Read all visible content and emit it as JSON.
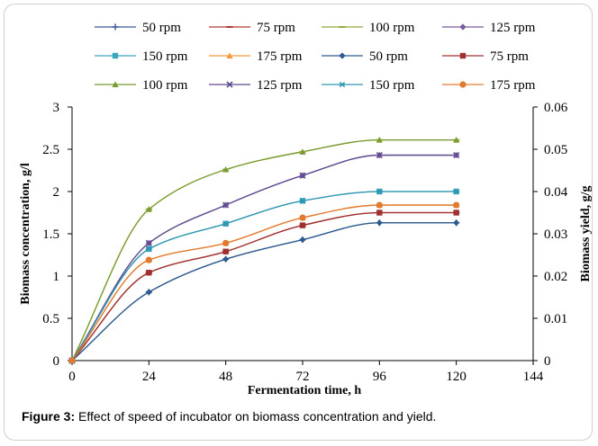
{
  "figure": {
    "caption_label": "Figure 3:",
    "caption_text": "Effect of speed of incubator on biomass concentration and yield."
  },
  "chart_data": {
    "type": "line",
    "xlabel": "Fermentation time, h",
    "ylabel_left": "Biomass concentration, g/l",
    "ylabel_right": "Biomass yield, g/g",
    "xlim": [
      0,
      144
    ],
    "ylim_left": [
      0,
      3
    ],
    "ylim_right": [
      0,
      0.06
    ],
    "x_ticks": [
      0,
      24,
      48,
      72,
      96,
      120,
      144
    ],
    "y_ticks_left": [
      "0",
      "0.5",
      "1",
      "1.5",
      "2",
      "2.5",
      "3"
    ],
    "y_ticks_right": [
      "0",
      "0.01",
      "0.02",
      "0.03",
      "0.04",
      "0.05",
      "0.06"
    ],
    "grid": false,
    "legend_position": "top",
    "x": [
      0,
      24,
      48,
      72,
      96,
      120
    ],
    "series": [
      {
        "name": "50 rpm",
        "axis": "left",
        "marker": "plus",
        "color": "#3a5a9c",
        "values": [
          0,
          0.81,
          1.2,
          1.43,
          1.63,
          1.63
        ]
      },
      {
        "name": "75 rpm",
        "axis": "left",
        "marker": "dash",
        "color": "#b03a34",
        "values": [
          0,
          1.04,
          1.29,
          1.6,
          1.75,
          1.75
        ]
      },
      {
        "name": "100 rpm",
        "axis": "left",
        "marker": "dash",
        "color": "#8fae3a",
        "values": [
          0,
          1.79,
          2.26,
          2.47,
          2.61,
          2.61
        ]
      },
      {
        "name": "125 rpm",
        "axis": "left",
        "marker": "diamond",
        "color": "#7a5a9e",
        "values": [
          0,
          1.39,
          1.84,
          2.19,
          2.43,
          2.43
        ]
      },
      {
        "name": "150 rpm",
        "axis": "left",
        "marker": "square",
        "color": "#3aa6c0",
        "values": [
          0,
          1.32,
          1.62,
          1.89,
          2.0,
          2.0
        ]
      },
      {
        "name": "175 rpm",
        "axis": "left",
        "marker": "triangle",
        "color": "#f59a3c",
        "values": [
          0,
          1.19,
          1.39,
          1.69,
          1.84,
          1.84
        ]
      },
      {
        "name": "50 rpm",
        "axis": "right",
        "marker": "diamond",
        "color": "#2e5a8e",
        "values": [
          0,
          0.0162,
          0.024,
          0.0286,
          0.0326,
          0.0326
        ]
      },
      {
        "name": "75 rpm",
        "axis": "right",
        "marker": "square",
        "color": "#a03030",
        "values": [
          0,
          0.0208,
          0.0258,
          0.032,
          0.035,
          0.035
        ]
      },
      {
        "name": "100 rpm",
        "axis": "right",
        "marker": "triangle",
        "color": "#7a9a30",
        "values": [
          0,
          0.0358,
          0.0452,
          0.0494,
          0.0522,
          0.0522
        ]
      },
      {
        "name": "125 rpm",
        "axis": "right",
        "marker": "x",
        "color": "#5e4a8e",
        "values": [
          0,
          0.0278,
          0.0368,
          0.0438,
          0.0486,
          0.0486
        ]
      },
      {
        "name": "150 rpm",
        "axis": "right",
        "marker": "star",
        "color": "#2e96b0",
        "values": [
          0,
          0.0264,
          0.0324,
          0.0378,
          0.04,
          0.04
        ]
      },
      {
        "name": "175 rpm",
        "axis": "right",
        "marker": "circle",
        "color": "#e07a30",
        "values": [
          0,
          0.0238,
          0.0278,
          0.0338,
          0.0368,
          0.0368
        ]
      }
    ]
  }
}
